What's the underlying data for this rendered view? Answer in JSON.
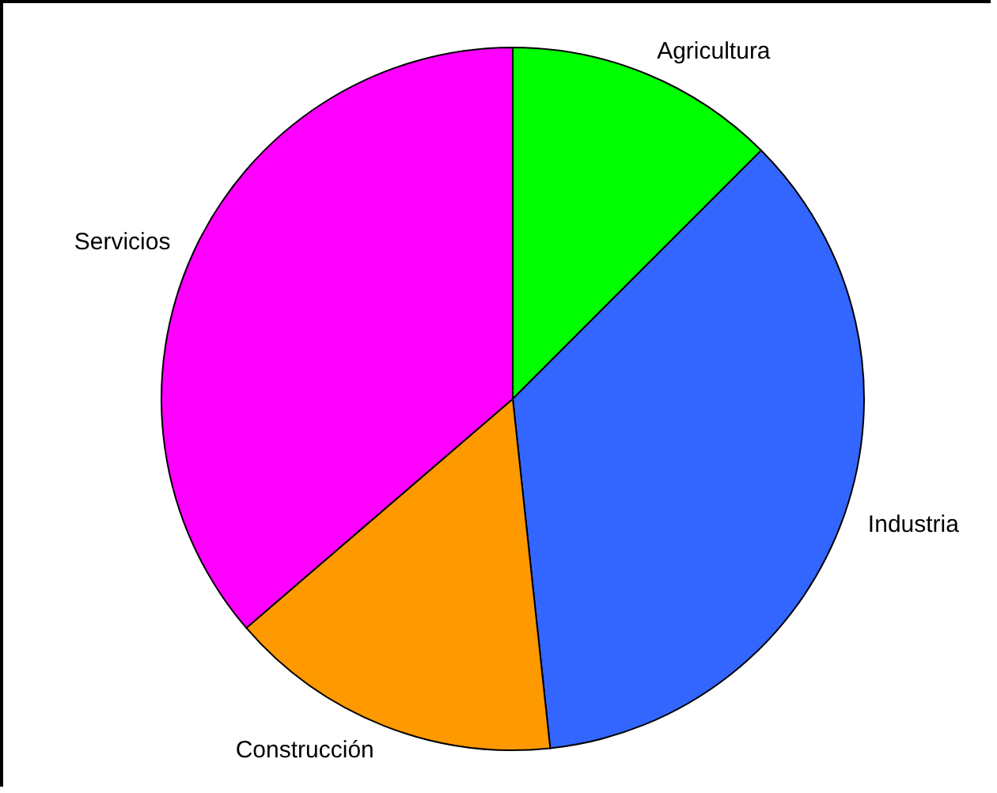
{
  "chart_data": {
    "type": "pie",
    "categories": [
      "Agricultura",
      "Industria",
      "Construcción",
      "Servicios"
    ],
    "values": [
      12.5,
      35.8,
      15.4,
      36.3
    ],
    "colors": [
      "#00ff00",
      "#3366ff",
      "#ff9900",
      "#ff00ff"
    ]
  }
}
